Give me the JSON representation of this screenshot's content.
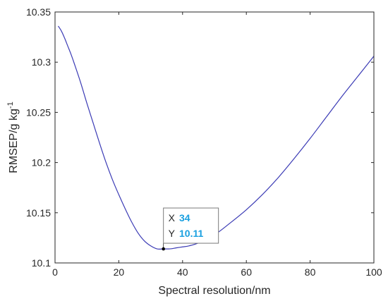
{
  "chart_data": {
    "type": "line",
    "title": "",
    "xlabel": "Spectral resolution/nm",
    "ylabel": "RMSEP/g kg",
    "ylabel_superscript": "-1",
    "xlim": [
      0,
      100
    ],
    "ylim": [
      10.1,
      10.35
    ],
    "x_ticks": [
      0,
      20,
      40,
      60,
      80,
      100
    ],
    "y_ticks": [
      10.1,
      10.15,
      10.2,
      10.25,
      10.3,
      10.35
    ],
    "x_tick_labels": [
      "0",
      "20",
      "40",
      "60",
      "80",
      "100"
    ],
    "y_tick_labels": [
      "10.1",
      "10.15",
      "10.2",
      "10.25",
      "10.3",
      "10.35"
    ],
    "grid": false,
    "line_color": "#3b3bb5",
    "datatip_value_color": "#1aa0e0",
    "series": [
      {
        "x": [
          1,
          2,
          3,
          4,
          5,
          6,
          8,
          10,
          12,
          14,
          16,
          18,
          20,
          22,
          24,
          26,
          28,
          30,
          32,
          34,
          36,
          38,
          40,
          42,
          45,
          50,
          55,
          60,
          65,
          70,
          75,
          80,
          85,
          90,
          95,
          100
        ],
        "y": [
          10.336,
          10.331,
          10.324,
          10.316,
          10.308,
          10.299,
          10.28,
          10.259,
          10.239,
          10.219,
          10.2,
          10.183,
          10.168,
          10.154,
          10.141,
          10.13,
          10.122,
          10.117,
          10.114,
          10.114,
          10.114,
          10.115,
          10.116,
          10.117,
          10.12,
          10.128,
          10.14,
          10.153,
          10.168,
          10.185,
          10.204,
          10.224,
          10.245,
          10.266,
          10.286,
          10.306
        ]
      }
    ],
    "datatip": {
      "x": 34,
      "y": 10.114,
      "x_key": "X",
      "y_key": "Y",
      "x_text": "34",
      "y_text": "10.11"
    }
  }
}
